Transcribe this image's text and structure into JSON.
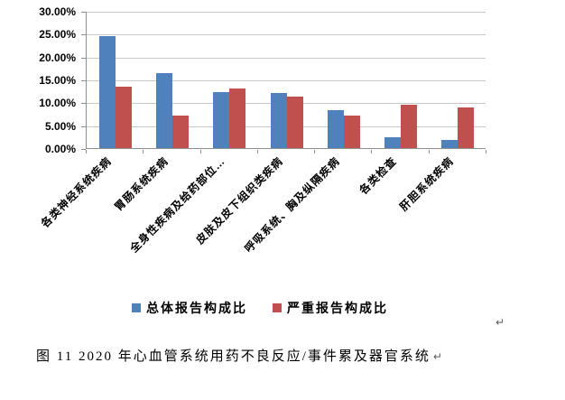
{
  "chart_data": {
    "type": "bar",
    "title": "",
    "categories": [
      "各类神经系统疾病",
      "胃肠系统疾病",
      "全身性疾病及给药部位…",
      "皮肤及皮下组织类疾病",
      "呼吸系统、胸及纵隔疾病",
      "各类检查",
      "肝胆系统疾病"
    ],
    "series": [
      {
        "name": "总体报告构成比",
        "color": "#4F81BD",
        "values": [
          24.4,
          16.4,
          12.2,
          12.0,
          8.3,
          2.4,
          1.7
        ]
      },
      {
        "name": "严重报告构成比",
        "color": "#C0504D",
        "values": [
          13.4,
          7.2,
          13.1,
          11.2,
          7.1,
          9.5,
          8.9
        ]
      }
    ],
    "xlabel": "",
    "ylabel": "",
    "ylim": [
      0,
      30
    ],
    "ytick_step": 5,
    "ytick_labels": [
      "0.00%",
      "5.00%",
      "10.00%",
      "15.00%",
      "20.00%",
      "25.00%",
      "30.00%"
    ],
    "grid": true,
    "legend_position": "bottom"
  },
  "colors": {
    "grid": "#c9c9c9",
    "axis": "#8f8f8f",
    "text": "#000000",
    "series_blue": "#4F81BD",
    "series_red": "#C0504D"
  },
  "caption": {
    "text": "图 11  2020 年心血管系统用药不良反应/事件累及器官系统",
    "return_mark": "↵"
  },
  "paragraph_mark": "↵"
}
